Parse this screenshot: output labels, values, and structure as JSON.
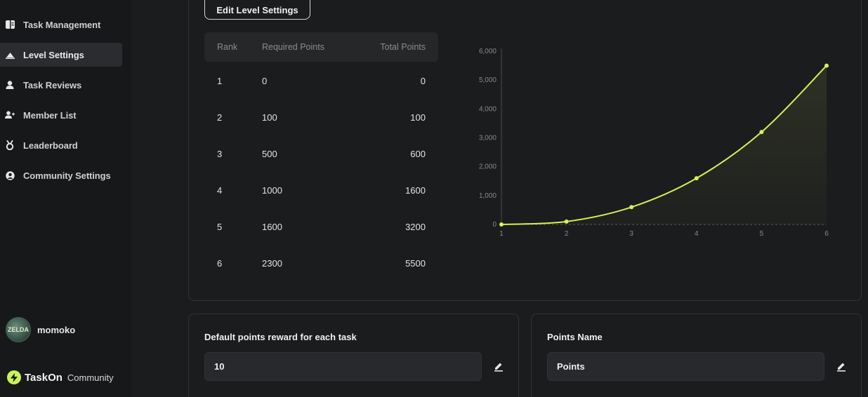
{
  "sidebar": {
    "items": [
      {
        "label": "Task Management",
        "icon": "book-icon"
      },
      {
        "label": "Level Settings",
        "icon": "mountain-icon"
      },
      {
        "label": "Task Reviews",
        "icon": "person-icon"
      },
      {
        "label": "Member List",
        "icon": "add-user-icon"
      },
      {
        "label": "Leaderboard",
        "icon": "medal-icon"
      },
      {
        "label": "Community Settings",
        "icon": "user-circle-icon"
      }
    ],
    "active_index": 1,
    "user": {
      "name": "momoko",
      "avatar_text": "ZELDA"
    },
    "brand": {
      "name": "TaskOn",
      "sub": "Community"
    }
  },
  "level": {
    "edit_button": "Edit Level Settings",
    "table": {
      "headers": [
        "Rank",
        "Required Points",
        "Total Points"
      ],
      "rows": [
        [
          "1",
          "0",
          "0"
        ],
        [
          "2",
          "100",
          "100"
        ],
        [
          "3",
          "500",
          "600"
        ],
        [
          "4",
          "1000",
          "1600"
        ],
        [
          "5",
          "1600",
          "3200"
        ],
        [
          "6",
          "2300",
          "5500"
        ]
      ]
    }
  },
  "chart_data": {
    "type": "area",
    "x": [
      1,
      2,
      3,
      4,
      5,
      6
    ],
    "series": [
      {
        "values": [
          0,
          100,
          600,
          1600,
          3200,
          5500
        ]
      }
    ],
    "y_ticks": [
      "0",
      "1,000",
      "2,000",
      "3,000",
      "4,000",
      "5,000",
      "6,000"
    ],
    "x_ticks": [
      "1",
      "2",
      "3",
      "4",
      "5",
      "6"
    ],
    "ylim": [
      0,
      6000
    ],
    "xlim": [
      1,
      6
    ],
    "line_color": "#d8f05a",
    "grid": false
  },
  "cards": {
    "reward": {
      "title": "Default points reward for each task",
      "value": "10"
    },
    "points_name": {
      "title": "Points Name",
      "value": "Points"
    }
  },
  "colors": {
    "accent": "#d8f05a",
    "background": "#1b1c1e",
    "sidebar": "#17181a"
  }
}
